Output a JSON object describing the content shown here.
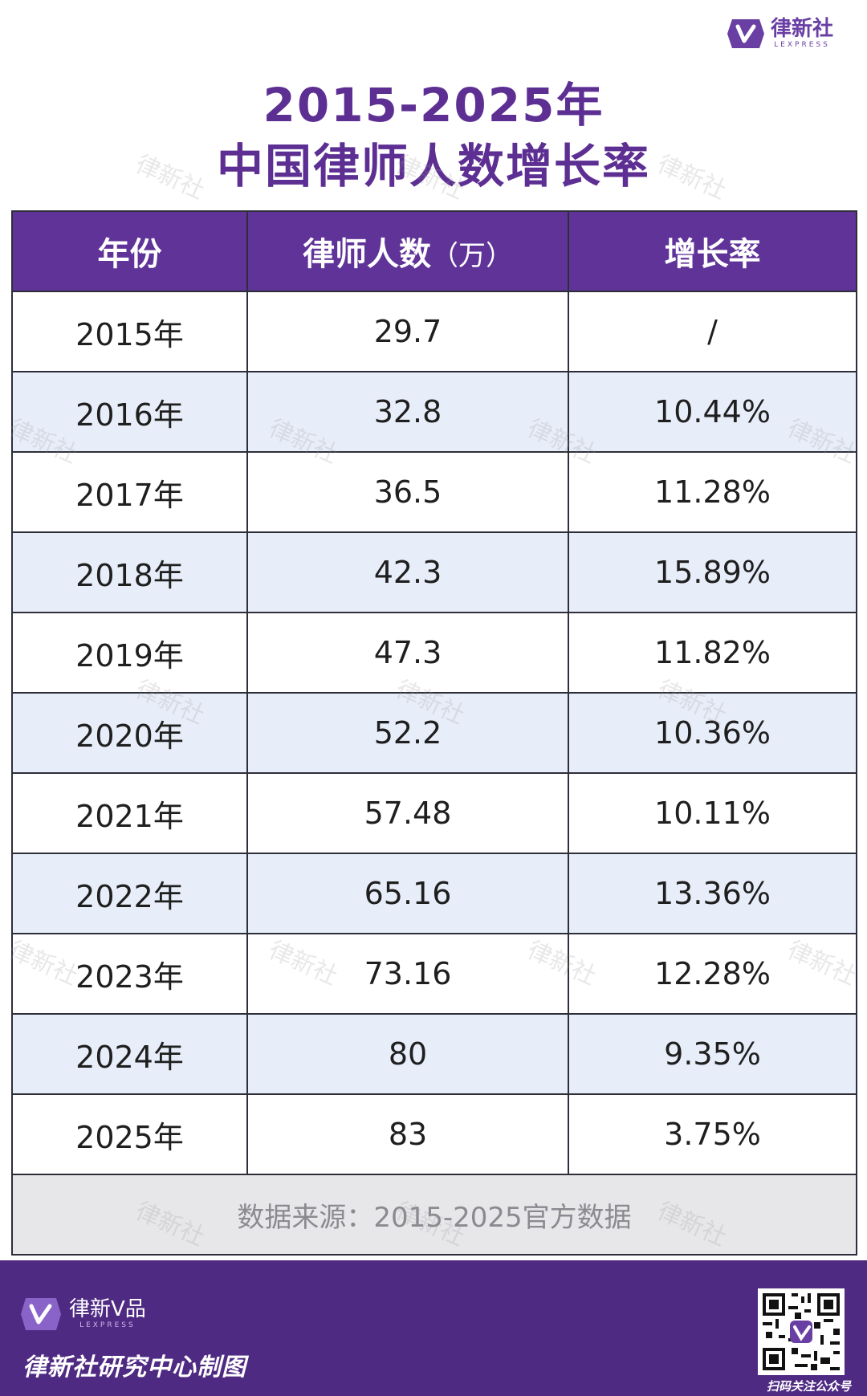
{
  "brand": {
    "top_logo_cn": "律新社",
    "top_logo_en": "LEXPRESS",
    "watermark": "律新社"
  },
  "title": {
    "line1": "2015-2025年",
    "line2": "中国律师人数增长率"
  },
  "table": {
    "headers": {
      "year": "年份",
      "count": "律师人数",
      "count_unit": "（万）",
      "growth": "增长率"
    },
    "rows": [
      {
        "year": "2015年",
        "count": "29.7",
        "growth": "/"
      },
      {
        "year": "2016年",
        "count": "32.8",
        "growth": "10.44%"
      },
      {
        "year": "2017年",
        "count": "36.5",
        "growth": "11.28%"
      },
      {
        "year": "2018年",
        "count": "42.3",
        "growth": "15.89%"
      },
      {
        "year": "2019年",
        "count": "47.3",
        "growth": "11.82%"
      },
      {
        "year": "2020年",
        "count": "52.2",
        "growth": "10.36%"
      },
      {
        "year": "2021年",
        "count": "57.48",
        "growth": "10.11%"
      },
      {
        "year": "2022年",
        "count": "65.16",
        "growth": "13.36%"
      },
      {
        "year": "2023年",
        "count": "73.16",
        "growth": "12.28%"
      },
      {
        "year": "2024年",
        "count": "80",
        "growth": "9.35%"
      },
      {
        "year": "2025年",
        "count": "83",
        "growth": "3.75%"
      }
    ],
    "source": "数据来源：2015-2025官方数据"
  },
  "footer": {
    "logo_cn": "律新V品",
    "logo_en": "LEXPRESS",
    "title": "律新社研究中心制图",
    "qr_caption": "扫码关注公众号"
  },
  "colors": {
    "brand_purple": "#5f3398",
    "title_purple": "#5d2f93",
    "footer_purple": "#4f2a83",
    "row_alt": "#e8eef9",
    "source_bg": "#e7e7ea"
  }
}
